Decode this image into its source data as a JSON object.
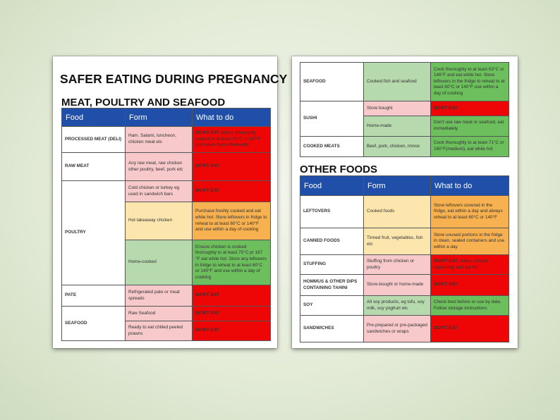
{
  "left_page": {
    "title": "SAFER EATING DURING PREGNANCY",
    "section_title": "MEAT, POULTRY AND SEAFOOD",
    "headers": {
      "food": "Food",
      "form": "Form",
      "action": "What to do"
    },
    "rows": [
      {
        "food": "PROCESSED MEAT (DELI)",
        "form": "Ham. Salami, luncheon, chicken meat etc",
        "form_color": "pink",
        "action_lead": "DON'T EAT",
        "action": " unless thoroughly cooked to at least 75°C or 167°F and eaten soon afterwards",
        "action_color": "red"
      },
      {
        "food": "RAW MEAT",
        "form": "Any raw meat, raw chicken other poultry, beef, pork etc",
        "form_color": "pink",
        "action_lead": "DON'T EAT",
        "action": "",
        "action_color": "red"
      },
      {
        "food": "POULTRY",
        "form": "Cold chicken or turkey eg used in sandwich bars",
        "form_color": "pink",
        "action_lead": "DON'T EAT",
        "action": "",
        "action_color": "red"
      },
      {
        "food": "",
        "form": "Hot takeaway chicken",
        "form_color": "yellow",
        "action_lead": "",
        "action": "Purchase freshly cooked and eat while hot. Store leftovers in fridge to reheat to at least 60°C or 140°F and use within a day of cooking",
        "action_color": "orange"
      },
      {
        "food": "",
        "form": "Home-cooked",
        "form_color": "green",
        "action_lead": "",
        "action": "Ensure chicken is cooked thoroughly to at least 75°C pr 167 °F eat while hot. Store any leftovers in fridge to reheat to at least 60°C or 140°F and use within a day of cooking",
        "action_color": "green"
      },
      {
        "food": "PATE",
        "form": "Refrigerated pate or meat spreads",
        "form_color": "pink",
        "action_lead": "DON'T EAT",
        "action": "",
        "action_color": "red"
      },
      {
        "food": "SEAFOOD",
        "form": "Raw Seafood",
        "form_color": "pink",
        "action_lead": "DON'T EAT",
        "action": "",
        "action_color": "red"
      },
      {
        "food": "",
        "form": "Ready to eat chilled peeled prawns",
        "form_color": "pink",
        "action_lead": "DON'T EAT",
        "action": "",
        "action_color": "red"
      }
    ]
  },
  "right_page": {
    "top_rows": [
      {
        "food": "SEAFOOD",
        "form": "Cooked fish and seafood",
        "form_color": "green",
        "action_lead": "",
        "action": "Cook thoroughly to at least 63°C or 146°F and eat while hot. Store leftovers in the fridge to reheat to at least 60°C or 140°F use within a day of cooking",
        "action_color": "green"
      },
      {
        "food": "SUSHI",
        "form": "Store bought",
        "form_color": "pink",
        "action_lead": "DON'T EAT",
        "action": "",
        "action_color": "red"
      },
      {
        "food": "",
        "form": "Home-made",
        "form_color": "green",
        "action_lead": "",
        "action": "Don't use raw meat or seafood, eat immediately",
        "action_color": "green"
      },
      {
        "food": "COOKED MEATS",
        "form": "Beef, pork, chicken, mince",
        "form_color": "green",
        "action_lead": "",
        "action": "Cook thoroughly to at least 71°C or 160°F(medium), eat while hot",
        "action_color": "green"
      }
    ],
    "section_title": "OTHER FOODS",
    "headers": {
      "food": "Food",
      "form": "Form",
      "action": "What to do"
    },
    "rows": [
      {
        "food": "LEFTOVERS",
        "form": "Cooked foods",
        "form_color": "yellow",
        "action_lead": "",
        "action": "Store leftovers covered in the fridge, eat within a day and always reheat to at least 60°C or 140°F",
        "action_color": "orange"
      },
      {
        "food": "CANNED FOODS",
        "form": "Tinned fruit, vegetables, fish etc",
        "form_color": "yellow",
        "action_lead": "",
        "action": "Store unused portions in the fridge in clean, sealed containers and use within a day",
        "action_color": "orange"
      },
      {
        "food": "STUFFING",
        "form": "Stuffing from chicken or poultry",
        "form_color": "pink",
        "action_lead": "DON'T EAT",
        "action": " unless cooked separately and eat hot",
        "action_color": "red"
      },
      {
        "food": "HOMMUS & OTHER DIPS CONTAINING TAHINI",
        "form": "Store-bought or home-made",
        "form_color": "pink",
        "action_lead": "DON'T EAT",
        "action": "",
        "action_color": "red"
      },
      {
        "food": "SOY",
        "form": "All soy products, eg tofu, soy milk, soy yoghurt etc",
        "form_color": "green",
        "action_lead": "",
        "action": "Check best before or use by date. Follow storage instructions",
        "action_color": "green"
      },
      {
        "food": "SANDWICHES",
        "form": "Pre-prepared or pre-packaged sandwiches or wraps",
        "form_color": "pink",
        "action_lead": "DON'T EAT",
        "action": "",
        "action_color": "red"
      }
    ]
  },
  "colors": {
    "header_blue": "#1f4fa8",
    "dont_eat_red": "#ee0505",
    "caution_orange": "#f7b150",
    "safe_green": "#6cbf5c",
    "form_pink": "#f8c9cb",
    "form_yellow": "#fde6ae",
    "form_green": "#b6d9ae"
  }
}
